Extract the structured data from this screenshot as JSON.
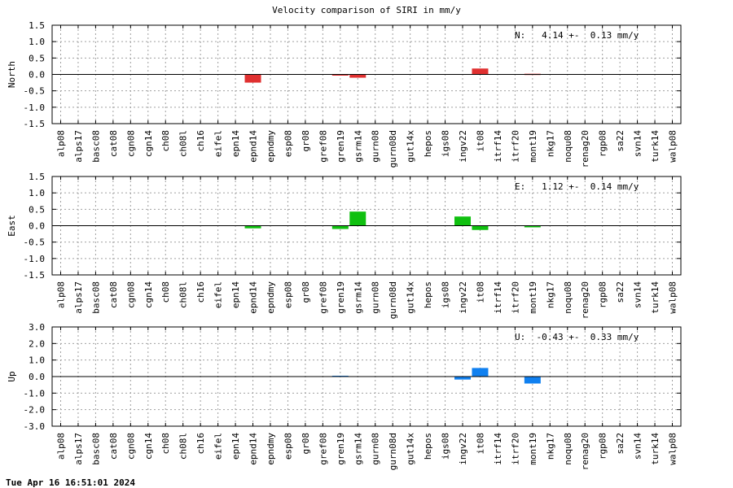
{
  "title": "Velocity comparison of SIRI in mm/y",
  "footer": "Tue Apr 16 16:51:01 2024",
  "colors": {
    "north": "#e03030",
    "east": "#10c010",
    "up": "#1080f0"
  },
  "chart_data": [
    {
      "type": "bar",
      "ylabel": "North",
      "ylim": [
        -1.5,
        1.5
      ],
      "yticks": [
        -1.5,
        -1.0,
        -0.5,
        0.0,
        0.5,
        1.0,
        1.5
      ],
      "ytick_format": 1,
      "annotation": "N:   4.14 +-  0.13 mm/y",
      "color": "#e03030",
      "grid": true,
      "categories": [
        "alp08",
        "alps17",
        "basc08",
        "cat08",
        "cgn08",
        "cgn14",
        "ch08",
        "ch08l",
        "ch16",
        "eifel",
        "epn14",
        "epnd14",
        "epndmy",
        "esp08",
        "gr08",
        "gref08",
        "gren19",
        "gsrm14",
        "gurn08",
        "gurn08d",
        "gut14x",
        "hepos",
        "igs08",
        "ingv22",
        "it08",
        "itrf14",
        "itrf20",
        "mont19",
        "nkg17",
        "noqu08",
        "renag20",
        "rgp08",
        "sa22",
        "svn14",
        "turk14",
        "walp08"
      ],
      "values": [
        0,
        0,
        0,
        0,
        0,
        0,
        0,
        0,
        0,
        0,
        0,
        -0.25,
        0,
        0,
        0,
        0,
        -0.03,
        -0.1,
        0,
        0,
        0,
        0,
        0,
        0,
        0.18,
        0,
        0,
        0.02,
        0,
        0,
        0,
        0,
        0,
        0,
        0,
        0
      ]
    },
    {
      "type": "bar",
      "ylabel": "East",
      "ylim": [
        -1.5,
        1.5
      ],
      "yticks": [
        -1.5,
        -1.0,
        -0.5,
        0.0,
        0.5,
        1.0,
        1.5
      ],
      "ytick_format": 1,
      "annotation": "E:   1.12 +-  0.14 mm/y",
      "color": "#10c010",
      "grid": true,
      "categories": [
        "alp08",
        "alps17",
        "basc08",
        "cat08",
        "cgn08",
        "cgn14",
        "ch08",
        "ch08l",
        "ch16",
        "eifel",
        "epn14",
        "epnd14",
        "epndmy",
        "esp08",
        "gr08",
        "gref08",
        "gren19",
        "gsrm14",
        "gurn08",
        "gurn08d",
        "gut14x",
        "hepos",
        "igs08",
        "ingv22",
        "it08",
        "itrf14",
        "itrf20",
        "mont19",
        "nkg17",
        "noqu08",
        "renag20",
        "rgp08",
        "sa22",
        "svn14",
        "turk14",
        "walp08"
      ],
      "values": [
        0,
        0,
        0,
        0,
        0,
        0,
        0,
        0,
        0,
        0,
        0,
        -0.08,
        0,
        0,
        0,
        0,
        -0.1,
        0.43,
        0,
        0,
        0,
        0,
        0,
        0.28,
        -0.13,
        0,
        0,
        -0.05,
        0,
        0,
        0,
        0,
        0,
        0,
        0,
        0
      ]
    },
    {
      "type": "bar",
      "ylabel": "Up",
      "ylim": [
        -3.0,
        3.0
      ],
      "yticks": [
        -3.0,
        -2.0,
        -1.0,
        0.0,
        1.0,
        2.0,
        3.0
      ],
      "ytick_format": 1,
      "annotation": "U:  -0.43 +-  0.33 mm/y",
      "color": "#1080f0",
      "grid": true,
      "categories": [
        "alp08",
        "alps17",
        "basc08",
        "cat08",
        "cgn08",
        "cgn14",
        "ch08",
        "ch08l",
        "ch16",
        "eifel",
        "epn14",
        "epnd14",
        "epndmy",
        "esp08",
        "gr08",
        "gref08",
        "gren19",
        "gsrm14",
        "gurn08",
        "gurn08d",
        "gut14x",
        "hepos",
        "igs08",
        "ingv22",
        "it08",
        "itrf14",
        "itrf20",
        "mont19",
        "nkg17",
        "noqu08",
        "renag20",
        "rgp08",
        "sa22",
        "svn14",
        "turk14",
        "walp08"
      ],
      "values": [
        0,
        0,
        0,
        0,
        0,
        0,
        0,
        0,
        0,
        0,
        0,
        0,
        0,
        0,
        0,
        0,
        0.05,
        0,
        0,
        0,
        0,
        0,
        0,
        -0.18,
        0.52,
        0,
        0,
        -0.42,
        0,
        0,
        0,
        0,
        0,
        0,
        0,
        0
      ]
    }
  ]
}
